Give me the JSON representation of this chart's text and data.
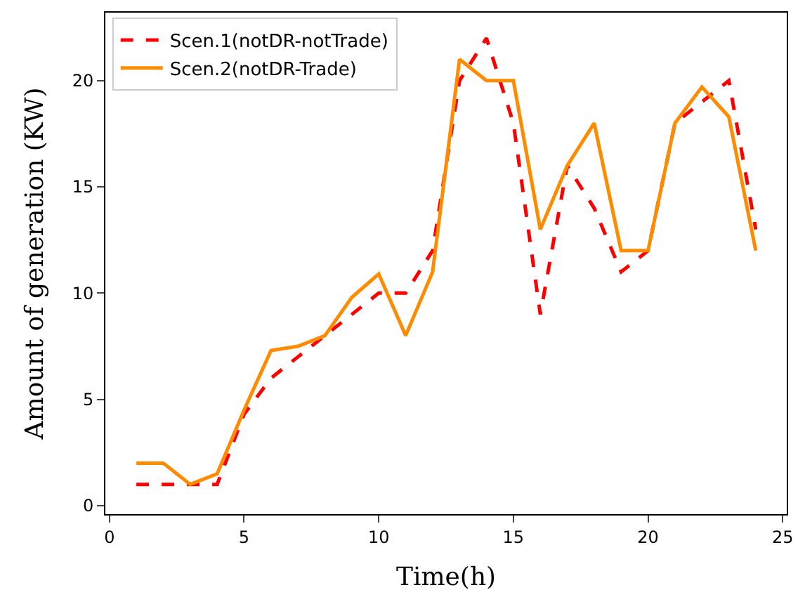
{
  "chart_data": {
    "type": "line",
    "xlabel": "Time(h)",
    "ylabel": "Amount of generation (KW)",
    "x": [
      1,
      2,
      3,
      4,
      5,
      6,
      7,
      8,
      9,
      10,
      11,
      12,
      13,
      14,
      15,
      16,
      17,
      18,
      19,
      20,
      21,
      22,
      23,
      24
    ],
    "series": [
      {
        "name": "Scen.1(notDR-notTrade)",
        "color": "#ff0000",
        "line_style": "dashed",
        "values": [
          1,
          1,
          1,
          1,
          4.3,
          6,
          7,
          8,
          9,
          10,
          10,
          12,
          20,
          22,
          18,
          9,
          16,
          14,
          11,
          12,
          18,
          19,
          20,
          13
        ]
      },
      {
        "name": "Scen.2(notDR-Trade)",
        "color": "#ff8c00",
        "line_style": "solid",
        "values": [
          2,
          2,
          1,
          1.5,
          4.5,
          7.3,
          7.5,
          8,
          9.8,
          10.9,
          8,
          11,
          21,
          20,
          20,
          13,
          16,
          18,
          12,
          12,
          18,
          19.7,
          18.3,
          12
        ]
      }
    ],
    "xlim": [
      -0.15,
      25.15
    ],
    "ylim": [
      -0.4,
      23.2
    ],
    "xticks": [
      0,
      5,
      10,
      15,
      20,
      25
    ],
    "yticks": [
      0,
      5,
      10,
      15,
      20
    ],
    "legend": "top left",
    "marker": "none"
  }
}
